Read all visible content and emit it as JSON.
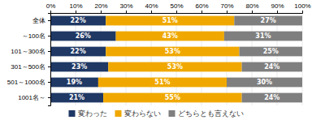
{
  "chart_data": {
    "type": "bar",
    "orientation": "horizontal",
    "stacked": true,
    "categories": [
      "全体",
      "～100名",
      "101～300名",
      "301～500名",
      "501～1000名",
      "1001名～"
    ],
    "series": [
      {
        "name": "変わった",
        "color": "#1f3864",
        "values": [
          22,
          26,
          22,
          23,
          19,
          21
        ],
        "value_labels": [
          "22%",
          "26%",
          "22%",
          "23%",
          "19%",
          "21%"
        ]
      },
      {
        "name": "変わらない",
        "color": "#f0a800",
        "values": [
          51,
          43,
          53,
          53,
          51,
          55
        ],
        "value_labels": [
          "51%",
          "43%",
          "53%",
          "53%",
          "51%",
          "55%"
        ]
      },
      {
        "name": "どちらとも言えない",
        "color": "#7f7f7f",
        "values": [
          27,
          31,
          25,
          24,
          30,
          24
        ],
        "value_labels": [
          "27%",
          "31%",
          "25%",
          "24%",
          "30%",
          "24%"
        ]
      }
    ],
    "xlim": [
      0,
      100
    ],
    "xticks": [
      {
        "value": 0,
        "label": "0%"
      },
      {
        "value": 10,
        "label": "10%"
      },
      {
        "value": 20,
        "label": "20%"
      },
      {
        "value": 30,
        "label": "30%"
      },
      {
        "value": 40,
        "label": "40%"
      },
      {
        "value": 50,
        "label": "50%"
      },
      {
        "value": 60,
        "label": "60%"
      },
      {
        "value": 70,
        "label": "70%"
      },
      {
        "value": 80,
        "label": "80%"
      },
      {
        "value": 90,
        "label": "90%"
      },
      {
        "value": 100,
        "label": "100%"
      }
    ],
    "grid": true,
    "data_labels": true,
    "legend": "bottom"
  }
}
